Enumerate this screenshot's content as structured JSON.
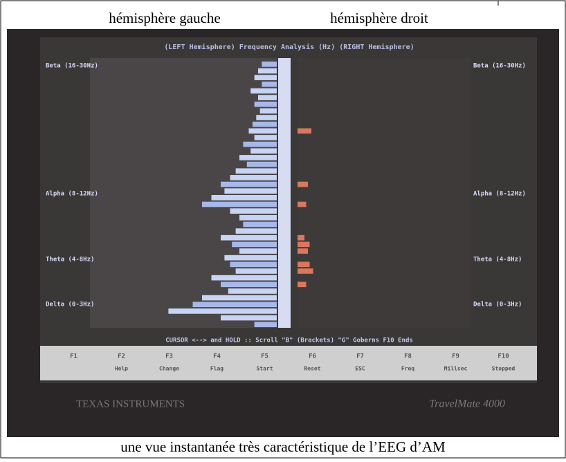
{
  "header": {
    "left": "hémisphère gauche",
    "right": "hémisphère droit"
  },
  "screen": {
    "title": "(LEFT Hemisphere)  Frequency Analysis (Hz)  (RIGHT Hemisphere)",
    "bands_left": [
      "Beta (16-30Hz)",
      "Alpha (8-12Hz)",
      "Theta (4-8Hz)",
      "Delta (0-3Hz)"
    ],
    "bands_right": [
      "Beta (16-30Hz)",
      "Alpha (8-12Hz)",
      "Theta (4-8Hz)",
      "Delta (0-3Hz)"
    ],
    "left_bars": [
      8,
      10,
      12,
      8,
      14,
      10,
      12,
      9,
      11,
      13,
      15,
      12,
      18,
      14,
      20,
      16,
      22,
      25,
      30,
      28,
      35,
      40,
      25,
      20,
      18,
      22,
      30,
      24,
      20,
      28,
      25,
      22,
      35,
      30,
      26,
      40,
      45,
      58,
      30,
      12
    ],
    "right_bars": [
      0,
      0,
      0,
      0,
      0,
      0,
      0,
      0,
      0,
      0,
      8,
      0,
      0,
      0,
      0,
      0,
      0,
      0,
      6,
      0,
      0,
      5,
      0,
      0,
      0,
      0,
      4,
      7,
      6,
      0,
      7,
      9,
      0,
      5,
      0,
      0,
      0,
      0,
      0,
      0
    ],
    "status": "CURSOR <--> and HOLD :: Scroll \"B\" (Brackets) \"G\" Goberns  F10 Ends",
    "keys": [
      "F1",
      "F2",
      "F3",
      "F4",
      "F5",
      "F6",
      "F7",
      "F8",
      "F9",
      "F10"
    ],
    "key_labels": [
      "Help",
      "Change",
      "Flag",
      "Start",
      "Reset",
      "ESC",
      "Freq",
      "Millsec",
      "Stopped"
    ],
    "brand": "TEXAS INSTRUMENTS",
    "model": "TravelMate 4000"
  },
  "caption": "une vue instantanée très caractéristique de l’EEG d’AM"
}
